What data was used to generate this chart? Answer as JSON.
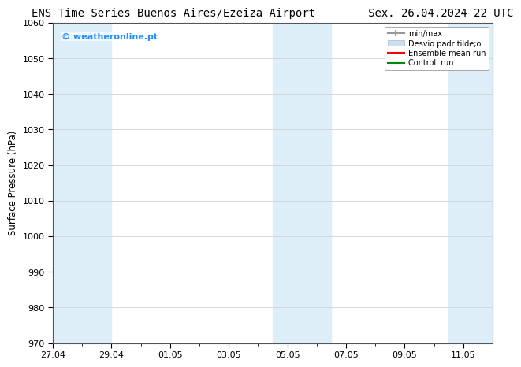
{
  "title_left": "ENS Time Series Buenos Aires/Ezeiza Airport",
  "title_right": "Sex. 26.04.2024 22 UTC",
  "ylabel": "Surface Pressure (hPa)",
  "ylim": [
    970,
    1060
  ],
  "yticks": [
    970,
    980,
    990,
    1000,
    1010,
    1020,
    1030,
    1040,
    1050,
    1060
  ],
  "xlim": [
    0,
    15
  ],
  "xtick_labels": [
    "27.04",
    "29.04",
    "01.05",
    "03.05",
    "05.05",
    "07.05",
    "09.05",
    "11.05"
  ],
  "xtick_positions": [
    0,
    2,
    4,
    6,
    8,
    10,
    12,
    14
  ],
  "shaded_bands": [
    {
      "x_start": 0.0,
      "x_end": 2.0
    },
    {
      "x_start": 7.5,
      "x_end": 9.5
    },
    {
      "x_start": 13.5,
      "x_end": 15.0
    }
  ],
  "watermark_text": "© weatheronline.pt",
  "watermark_color": "#1e90ff",
  "legend_labels": [
    "min/max",
    "Desvio padr tilde;o",
    "Ensemble mean run",
    "Controll run"
  ],
  "legend_colors": [
    "#999999",
    "#cce0f0",
    "#ff0000",
    "#008800"
  ],
  "bg_color": "#ffffff",
  "plot_bg_color": "#ffffff",
  "shaded_color": "#ddeef8",
  "title_fontsize": 10,
  "tick_fontsize": 8,
  "label_fontsize": 8.5,
  "legend_fontsize": 7
}
